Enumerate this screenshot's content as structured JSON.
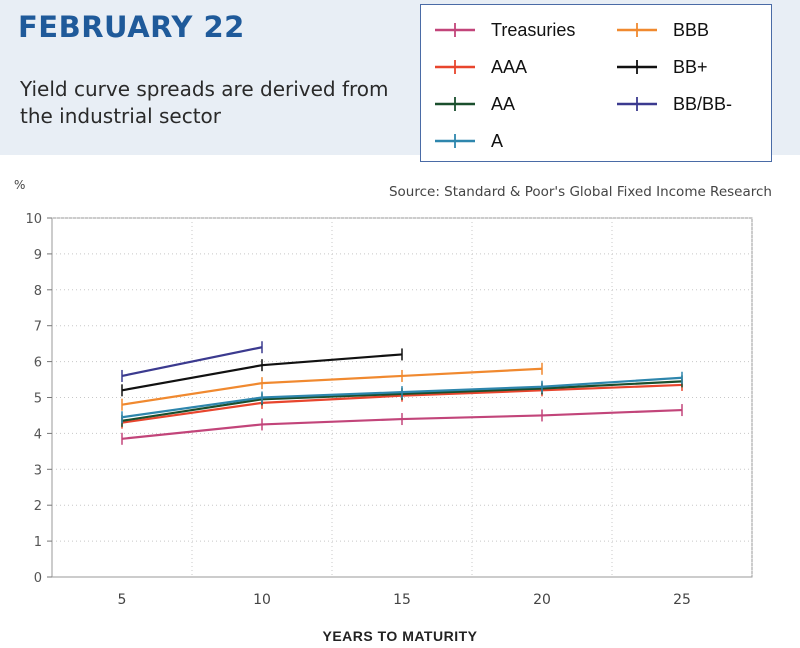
{
  "header": {
    "date_title": "FEBRUARY 22",
    "subtitle": "Yield curve spreads are derived from the industrial sector"
  },
  "source_note": "Source: Standard & Poor's Global Fixed Income Research",
  "chart_data": {
    "type": "line",
    "title": "",
    "xlabel": "YEARS TO MATURITY",
    "ylabel": "%",
    "xlim": [
      2.5,
      27.5
    ],
    "ylim": [
      0,
      10
    ],
    "xticks": [
      5,
      10,
      15,
      20,
      25
    ],
    "yticks": [
      0,
      1,
      2,
      3,
      4,
      5,
      6,
      7,
      8,
      9,
      10
    ],
    "grid": true,
    "legend_position": "top-right",
    "series": [
      {
        "name": "Treasuries",
        "color": "#c2457a",
        "marker": "B",
        "x": [
          5,
          10,
          15,
          20,
          25
        ],
        "y": [
          3.85,
          4.25,
          4.4,
          4.5,
          4.65
        ]
      },
      {
        "name": "AAA",
        "color": "#e8452d",
        "marker": "J",
        "x": [
          5,
          10,
          15,
          20,
          25
        ],
        "y": [
          4.3,
          4.85,
          5.05,
          5.2,
          5.35
        ]
      },
      {
        "name": "AA",
        "color": "#1a4f2d",
        "marker": "H",
        "x": [
          5,
          10,
          15,
          20,
          25
        ],
        "y": [
          4.35,
          4.95,
          5.1,
          5.25,
          5.45
        ]
      },
      {
        "name": "A",
        "color": "#2e86ad",
        "marker": "F",
        "x": [
          5,
          10,
          15,
          20,
          25
        ],
        "y": [
          4.45,
          5.0,
          5.15,
          5.3,
          5.55
        ]
      },
      {
        "name": "BBB",
        "color": "#f0892f",
        "marker": "B",
        "x": [
          5,
          10,
          15,
          20
        ],
        "y": [
          4.8,
          5.4,
          5.6,
          5.8
        ]
      },
      {
        "name": "BB+",
        "color": "#111111",
        "marker": "J",
        "x": [
          5,
          10,
          15
        ],
        "y": [
          5.2,
          5.9,
          6.2
        ]
      },
      {
        "name": "BB/BB-",
        "color": "#3b3a8f",
        "marker": "H",
        "x": [
          5,
          10
        ],
        "y": [
          5.6,
          6.4
        ]
      }
    ]
  }
}
